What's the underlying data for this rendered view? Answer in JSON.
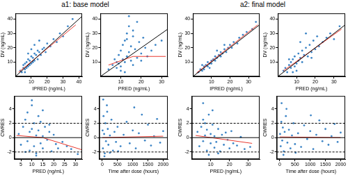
{
  "chart_data": [
    {
      "type": "scatter",
      "title": "a1: base model",
      "x_label": "IPRED (ng/mL)",
      "y_label": "DV (ng/mL)",
      "xlim": [
        0,
        42
      ],
      "ylim": [
        0,
        44
      ],
      "xticks": [
        10,
        20,
        30,
        40
      ],
      "yticks": [
        10,
        20,
        30,
        40
      ],
      "grid": false,
      "series": [
        {
          "type": "scatter",
          "color": "#3d85c6",
          "marker": "circle",
          "x": [
            3,
            4,
            5,
            5,
            6,
            6,
            7,
            7,
            8,
            8,
            9,
            9,
            10,
            10,
            11,
            11,
            12,
            12,
            13,
            14,
            14,
            15,
            16,
            17,
            18,
            19,
            20,
            22,
            24,
            26,
            28,
            30,
            33,
            36,
            8,
            12,
            6,
            10,
            15
          ],
          "values": [
            4,
            3,
            6,
            8,
            5,
            9,
            6,
            10,
            7,
            12,
            8,
            11,
            9,
            14,
            10,
            13,
            11,
            16,
            15,
            12,
            18,
            17,
            15,
            19,
            20,
            17,
            23,
            21,
            26,
            24,
            30,
            28,
            35,
            40,
            16,
            22,
            3,
            19,
            25
          ]
        },
        {
          "type": "line",
          "color": "#000000",
          "line_style": "solid",
          "x": [
            0,
            44
          ],
          "values": [
            0,
            44
          ]
        },
        {
          "type": "line",
          "color": "#e8382e",
          "line_style": "solid",
          "x": [
            2,
            38
          ],
          "values": [
            3,
            36
          ]
        }
      ]
    },
    {
      "type": "scatter",
      "x_label": "PRED (ng/mL)",
      "y_label": "DV (ng/mL)",
      "xlim": [
        0,
        33
      ],
      "ylim": [
        0,
        44
      ],
      "xticks": [
        10,
        20,
        30
      ],
      "yticks": [
        10,
        20,
        30,
        40
      ],
      "grid": false,
      "series": [
        {
          "type": "scatter",
          "color": "#3d85c6",
          "marker": "circle",
          "x": [
            4,
            6,
            7,
            8,
            9,
            9,
            10,
            10,
            11,
            11,
            12,
            12,
            13,
            13,
            14,
            14,
            15,
            15,
            16,
            16,
            17,
            18,
            18,
            19,
            20,
            21,
            22,
            23,
            25,
            27,
            30,
            12,
            14,
            10,
            16,
            20,
            8,
            13
          ],
          "values": [
            5,
            8,
            12,
            6,
            15,
            9,
            18,
            7,
            22,
            12,
            25,
            10,
            30,
            14,
            17,
            35,
            11,
            21,
            28,
            8,
            19,
            38,
            13,
            24,
            16,
            27,
            20,
            14,
            18,
            22,
            25,
            3,
            42,
            4,
            32,
            11,
            10,
            26
          ]
        },
        {
          "type": "line",
          "color": "#000000",
          "line_style": "solid",
          "x": [
            0,
            44
          ],
          "values": [
            0,
            44
          ]
        },
        {
          "type": "line",
          "color": "#e8382e",
          "line_style": "solid",
          "x": [
            4,
            16,
            32
          ],
          "values": [
            8,
            14,
            14
          ]
        }
      ]
    },
    {
      "type": "scatter",
      "x_label": "PRED (ng/mL)",
      "y_label": "CWRES",
      "xlim": [
        2,
        33
      ],
      "ylim": [
        -3,
        5.8
      ],
      "xticks": [
        5,
        10,
        15,
        20,
        25,
        30
      ],
      "yticks": [
        -2,
        0,
        2,
        4
      ],
      "grid": false,
      "series": [
        {
          "type": "scatter",
          "color": "#3d85c6",
          "marker": "circle",
          "x": [
            4,
            5,
            6,
            7,
            8,
            8,
            9,
            9,
            10,
            10,
            11,
            11,
            12,
            12,
            13,
            13,
            14,
            14,
            15,
            15,
            16,
            17,
            18,
            19,
            20,
            21,
            22,
            24,
            26,
            28,
            31,
            10,
            12,
            7,
            15,
            18
          ],
          "values": [
            0.5,
            -1,
            1.5,
            2.5,
            -0.5,
            3.5,
            0.8,
            -1.8,
            1.2,
            4.5,
            -1.2,
            2,
            0.3,
            -2.2,
            3,
            1,
            -0.8,
            2.2,
            0.2,
            -1.5,
            1.5,
            -0.3,
            0.8,
            -1.9,
            0.4,
            -0.9,
            -1.5,
            -0.6,
            -1.2,
            -1.6,
            -2.3,
            5.2,
            -2.5,
            -2,
            3.8,
            1.8
          ]
        },
        {
          "type": "line",
          "color": "#000000",
          "line_style": "solid",
          "x": [
            2,
            33
          ],
          "values": [
            0,
            0
          ]
        },
        {
          "type": "line",
          "color": "#000000",
          "line_style": "dashed",
          "x": [
            2,
            33
          ],
          "values": [
            2,
            2
          ]
        },
        {
          "type": "line",
          "color": "#000000",
          "line_style": "dashed",
          "x": [
            2,
            33
          ],
          "values": [
            -2,
            -2
          ]
        },
        {
          "type": "line",
          "color": "#e8382e",
          "line_style": "solid",
          "x": [
            3,
            15,
            33
          ],
          "values": [
            0.3,
            0,
            -1.7
          ]
        }
      ]
    },
    {
      "type": "scatter",
      "x_label": "Time after dose (hours)",
      "y_label": "CWRES",
      "xlim": [
        -100,
        2150
      ],
      "ylim": [
        -3,
        5.8
      ],
      "xticks": [
        0,
        500,
        1000,
        1500,
        2000
      ],
      "yticks": [
        -2,
        0,
        2,
        4
      ],
      "grid": false,
      "series": [
        {
          "type": "scatter",
          "color": "#3d85c6",
          "marker": "circle",
          "x": [
            10,
            20,
            40,
            60,
            80,
            100,
            120,
            150,
            180,
            200,
            250,
            300,
            350,
            400,
            450,
            500,
            600,
            700,
            800,
            900,
            1000,
            1100,
            1200,
            1300,
            1400,
            1500,
            1600,
            1700,
            1800,
            1900,
            2000,
            30,
            70,
            160,
            250,
            520,
            1050
          ],
          "values": [
            1,
            -1.5,
            3,
            0.5,
            -2.2,
            2,
            -0.5,
            4.5,
            1.2,
            -1,
            0.3,
            2.5,
            -1.8,
            0.8,
            -0.6,
            1.5,
            -1.2,
            0.4,
            2.2,
            -0.8,
            1,
            -1.5,
            0.6,
            3.2,
            -0.4,
            1.8,
            -1.1,
            0.2,
            2.6,
            -0.7,
            0.9,
            5.3,
            -2.6,
            3.6,
            -2.1,
            -1.9,
            4.2
          ]
        },
        {
          "type": "line",
          "color": "#000000",
          "line_style": "solid",
          "x": [
            -100,
            2150
          ],
          "values": [
            0,
            0
          ]
        },
        {
          "type": "line",
          "color": "#000000",
          "line_style": "dashed",
          "x": [
            -100,
            2150
          ],
          "values": [
            2,
            2
          ]
        },
        {
          "type": "line",
          "color": "#000000",
          "line_style": "dashed",
          "x": [
            -100,
            2150
          ],
          "values": [
            -2,
            -2
          ]
        },
        {
          "type": "line",
          "color": "#e8382e",
          "line_style": "solid",
          "x": [
            0,
            2000
          ],
          "values": [
            0,
            0.2
          ]
        }
      ]
    },
    {
      "type": "scatter",
      "title": "a2: final model",
      "x_label": "IPRED (ng/mL)",
      "y_label": "DV (ng/mL)",
      "xlim": [
        0,
        36
      ],
      "ylim": [
        0,
        44
      ],
      "xticks": [
        10,
        20,
        30
      ],
      "yticks": [
        10,
        20,
        30,
        40
      ],
      "grid": false,
      "series": [
        {
          "type": "scatter",
          "color": "#3d85c6",
          "marker": "circle",
          "x": [
            3,
            4,
            5,
            6,
            6,
            7,
            8,
            8,
            9,
            10,
            10,
            11,
            12,
            12,
            13,
            14,
            15,
            15,
            16,
            17,
            18,
            19,
            20,
            21,
            22,
            24,
            25,
            27,
            29,
            32,
            34,
            9,
            13,
            5,
            17
          ],
          "values": [
            3,
            5,
            4,
            7,
            5,
            8,
            7,
            10,
            9,
            11,
            9,
            12,
            11,
            14,
            13,
            15,
            14,
            17,
            16,
            19,
            17,
            20,
            22,
            20,
            24,
            23,
            27,
            29,
            31,
            33,
            38,
            6,
            18,
            8,
            22
          ]
        },
        {
          "type": "line",
          "color": "#000000",
          "line_style": "solid",
          "x": [
            0,
            44
          ],
          "values": [
            0,
            44
          ]
        },
        {
          "type": "line",
          "color": "#e8382e",
          "line_style": "solid",
          "x": [
            2,
            35
          ],
          "values": [
            2.5,
            36
          ]
        }
      ]
    },
    {
      "type": "scatter",
      "x_label": "PRED (ng/mL)",
      "y_label": "DV (ng/mL)",
      "xlim": [
        0,
        36
      ],
      "ylim": [
        0,
        44
      ],
      "xticks": [
        10,
        20,
        30
      ],
      "yticks": [
        10,
        20,
        30,
        40
      ],
      "grid": false,
      "series": [
        {
          "type": "scatter",
          "color": "#3d85c6",
          "marker": "circle",
          "x": [
            3,
            4,
            5,
            6,
            7,
            7,
            8,
            9,
            9,
            10,
            11,
            11,
            12,
            13,
            13,
            14,
            15,
            16,
            17,
            18,
            19,
            20,
            21,
            22,
            24,
            26,
            28,
            30,
            33,
            8,
            12,
            15,
            6,
            10,
            18
          ],
          "values": [
            4,
            6,
            3,
            8,
            6,
            10,
            12,
            7,
            14,
            9,
            16,
            11,
            13,
            18,
            10,
            15,
            20,
            14,
            22,
            17,
            25,
            19,
            28,
            21,
            24,
            27,
            30,
            26,
            35,
            3,
            24,
            30,
            12,
            4,
            13
          ]
        },
        {
          "type": "line",
          "color": "#000000",
          "line_style": "solid",
          "x": [
            0,
            44
          ],
          "values": [
            0,
            44
          ]
        },
        {
          "type": "line",
          "color": "#e8382e",
          "line_style": "solid",
          "x": [
            3,
            34
          ],
          "values": [
            4,
            33
          ]
        }
      ]
    },
    {
      "type": "scatter",
      "x_label": "PRED (ng/mL)",
      "y_label": "CWRES",
      "xlim": [
        0,
        36
      ],
      "ylim": [
        -3,
        5.8
      ],
      "xticks": [
        10,
        20,
        30
      ],
      "yticks": [
        -2,
        0,
        2,
        4
      ],
      "grid": false,
      "series": [
        {
          "type": "scatter",
          "color": "#3d85c6",
          "marker": "circle",
          "x": [
            3,
            4,
            5,
            6,
            6,
            7,
            8,
            8,
            9,
            10,
            10,
            11,
            12,
            12,
            13,
            14,
            15,
            16,
            17,
            18,
            19,
            20,
            21,
            22,
            24,
            26,
            28,
            31,
            6,
            9,
            11,
            14,
            7
          ],
          "values": [
            0.8,
            -1.2,
            1.5,
            -0.5,
            2.5,
            0.3,
            -1.8,
            1.1,
            3.2,
            -0.8,
            0.5,
            1.8,
            -1.4,
            0.2,
            -0.6,
            1.2,
            -1.9,
            0.4,
            -1,
            0.7,
            -0.3,
            -1.5,
            0.9,
            -0.8,
            -1.1,
            0.1,
            -1.6,
            -1.3,
            4.8,
            -2.4,
            3.8,
            -2.2,
            2
          ]
        },
        {
          "type": "line",
          "color": "#000000",
          "line_style": "solid",
          "x": [
            0,
            36
          ],
          "values": [
            0,
            0
          ]
        },
        {
          "type": "line",
          "color": "#000000",
          "line_style": "dashed",
          "x": [
            0,
            36
          ],
          "values": [
            2,
            2
          ]
        },
        {
          "type": "line",
          "color": "#000000",
          "line_style": "dashed",
          "x": [
            0,
            36
          ],
          "values": [
            -2,
            -2
          ]
        },
        {
          "type": "line",
          "color": "#e8382e",
          "line_style": "solid",
          "x": [
            2,
            32
          ],
          "values": [
            0.3,
            -0.8
          ]
        }
      ]
    },
    {
      "type": "scatter",
      "x_label": "Time after dose (hours)",
      "y_label": "CWRES",
      "xlim": [
        -100,
        2150
      ],
      "ylim": [
        -3,
        5.8
      ],
      "xticks": [
        0,
        500,
        1000,
        1500,
        2000
      ],
      "yticks": [
        -2,
        0,
        2,
        4
      ],
      "grid": false,
      "series": [
        {
          "type": "scatter",
          "color": "#3d85c6",
          "marker": "circle",
          "x": [
            10,
            30,
            50,
            80,
            100,
            130,
            160,
            200,
            250,
            300,
            350,
            400,
            450,
            500,
            600,
            700,
            800,
            900,
            1000,
            1100,
            1200,
            1300,
            1400,
            1500,
            1600,
            1700,
            1800,
            1900,
            2000,
            60,
            120,
            220,
            520,
            1020
          ],
          "values": [
            0.5,
            -1.2,
            2.2,
            -0.4,
            1.4,
            -1.9,
            0.8,
            3,
            -0.7,
            1.1,
            -1.5,
            0.3,
            2,
            -0.9,
            0.6,
            -1.3,
            1.7,
            -0.2,
            0.9,
            -1.6,
            0.4,
            2.4,
            -0.5,
            1.2,
            -1,
            0.2,
            1.9,
            -0.6,
            0.7,
            4.8,
            -2.4,
            4,
            -2.1,
            3.1
          ]
        },
        {
          "type": "line",
          "color": "#000000",
          "line_style": "solid",
          "x": [
            -100,
            2150
          ],
          "values": [
            0,
            0
          ]
        },
        {
          "type": "line",
          "color": "#000000",
          "line_style": "dashed",
          "x": [
            -100,
            2150
          ],
          "values": [
            2,
            2
          ]
        },
        {
          "type": "line",
          "color": "#000000",
          "line_style": "dashed",
          "x": [
            -100,
            2150
          ],
          "values": [
            -2,
            -2
          ]
        },
        {
          "type": "line",
          "color": "#e8382e",
          "line_style": "solid",
          "x": [
            0,
            2000
          ],
          "values": [
            0.1,
            0
          ]
        }
      ]
    }
  ]
}
